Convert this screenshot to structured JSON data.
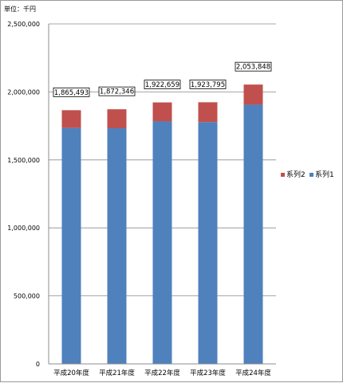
{
  "chart_data": {
    "type": "bar",
    "stacked": true,
    "unit_label": "単位：千円",
    "categories": [
      "平成20年度",
      "平成21年度",
      "平成22年度",
      "平成23年度",
      "平成24年度"
    ],
    "ylim": [
      0,
      2500000
    ],
    "yticks": [
      0,
      500000,
      1000000,
      1500000,
      2000000,
      2500000
    ],
    "ytick_labels": [
      "0",
      "500,000",
      "1,000,000",
      "1,500,000",
      "2,000,000",
      "2,500,000"
    ],
    "grid": true,
    "legend_position": "right",
    "series": [
      {
        "name": "系列1",
        "color": "#4f81bd",
        "values": [
          1735000,
          1733000,
          1783000,
          1778000,
          1906000
        ]
      },
      {
        "name": "系列2",
        "color": "#c0504d",
        "values": [
          130493,
          139346,
          139659,
          145795,
          147848
        ]
      }
    ],
    "total_labels": [
      "1,865,493",
      "1,872,346",
      "1,922,659",
      "1,923,795",
      "2,053,848"
    ]
  }
}
